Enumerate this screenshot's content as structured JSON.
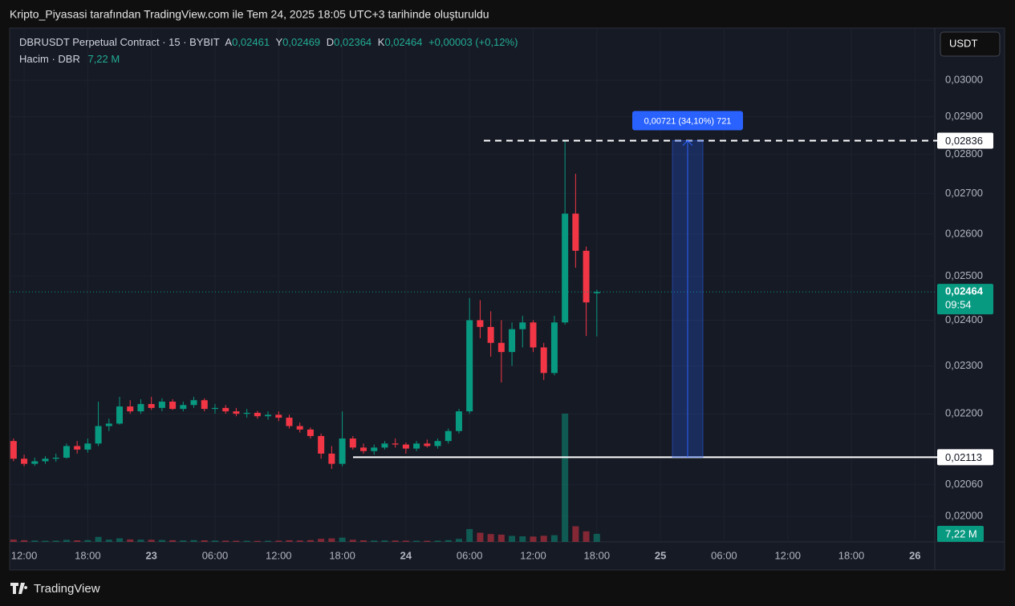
{
  "header": {
    "caption": "Kripto_Piyasasi tarafından TradingView.com ile Tem 24, 2025 18:05 UTC+3 tarihinde oluşturuldu",
    "footer": "TradingView"
  },
  "chart_data": {
    "type": "candlestick",
    "title": "DBRUSDT Perpetual Contract · 15 · BYBIT",
    "legend": {
      "open_label": "A",
      "open": "0,02461",
      "high_label": "Y",
      "high": "0,02469",
      "low_label": "D",
      "low": "0,02364",
      "close_label": "K",
      "close": "0,02464",
      "change": "+0,00003 (+0,12%)"
    },
    "volume_title": "Hacim · DBR",
    "volume_value": "7,22 M",
    "currency": "USDT",
    "up_color": "#089981",
    "down_color": "#f23645",
    "log_scale": true,
    "grid": true,
    "ylim": [
      0.01953,
      0.03149
    ],
    "yticks": [
      {
        "value": 0.02,
        "label": "0,02000"
      },
      {
        "value": 0.0206,
        "label": "0,02060"
      },
      {
        "value": 0.022,
        "label": "0,02200"
      },
      {
        "value": 0.023,
        "label": "0,02300"
      },
      {
        "value": 0.024,
        "label": "0,02400"
      },
      {
        "value": 0.025,
        "label": "0,02500"
      },
      {
        "value": 0.026,
        "label": "0,02600"
      },
      {
        "value": 0.027,
        "label": "0,02700"
      },
      {
        "value": 0.028,
        "label": "0,02800"
      },
      {
        "value": 0.029,
        "label": "0,02900"
      },
      {
        "value": 0.03,
        "label": "0,03000"
      }
    ],
    "xlim": [
      "22 10:38",
      "26 01:52"
    ],
    "xticks": [
      {
        "value": "22 12:00",
        "label": "12:00"
      },
      {
        "value": "22 18:00",
        "label": "18:00"
      },
      {
        "value": "23 00:00",
        "label": "23"
      },
      {
        "value": "23 06:00",
        "label": "06:00"
      },
      {
        "value": "23 12:00",
        "label": "12:00"
      },
      {
        "value": "23 18:00",
        "label": "18:00"
      },
      {
        "value": "24 00:00",
        "label": "24"
      },
      {
        "value": "24 06:00",
        "label": "06:00"
      },
      {
        "value": "24 12:00",
        "label": "12:00"
      },
      {
        "value": "24 18:00",
        "label": "18:00"
      },
      {
        "value": "25 00:00",
        "label": "25"
      },
      {
        "value": "25 06:00",
        "label": "06:00"
      },
      {
        "value": "25 12:00",
        "label": "12:00"
      },
      {
        "value": "25 18:00",
        "label": "18:00"
      },
      {
        "value": "26 00:00",
        "label": "26"
      }
    ],
    "x": [
      "22 11:00",
      "22 12:00",
      "22 13:00",
      "22 14:00",
      "22 15:00",
      "22 16:00",
      "22 17:00",
      "22 18:00",
      "22 19:00",
      "22 20:00",
      "22 21:00",
      "22 22:00",
      "22 23:00",
      "23 00:00",
      "23 01:00",
      "23 02:00",
      "23 03:00",
      "23 04:00",
      "23 05:00",
      "23 06:00",
      "23 07:00",
      "23 08:00",
      "23 09:00",
      "23 10:00",
      "23 11:00",
      "23 12:00",
      "23 13:00",
      "23 14:00",
      "23 15:00",
      "23 16:00",
      "23 17:00",
      "23 18:00",
      "23 19:00",
      "23 20:00",
      "23 21:00",
      "23 22:00",
      "23 23:00",
      "24 00:00",
      "24 01:00",
      "24 02:00",
      "24 03:00",
      "24 04:00",
      "24 05:00",
      "24 06:00",
      "24 07:00",
      "24 08:00",
      "24 09:00",
      "24 10:00",
      "24 11:00",
      "24 12:00",
      "24 13:00",
      "24 14:00",
      "24 15:00",
      "24 16:00",
      "24 17:00",
      "24 18:00"
    ],
    "open": [
      0.02145,
      0.0211,
      0.021,
      0.02105,
      0.0211,
      0.02112,
      0.02135,
      0.02128,
      0.0214,
      0.02175,
      0.0218,
      0.02215,
      0.02205,
      0.0222,
      0.02212,
      0.02225,
      0.0221,
      0.02218,
      0.02228,
      0.0221,
      0.02212,
      0.02205,
      0.022,
      0.02202,
      0.02195,
      0.02198,
      0.02192,
      0.02175,
      0.02168,
      0.02155,
      0.0212,
      0.021,
      0.0215,
      0.02132,
      0.02125,
      0.02132,
      0.0214,
      0.02138,
      0.0213,
      0.0214,
      0.02135,
      0.02145,
      0.02165,
      0.02205,
      0.024,
      0.02385,
      0.0235,
      0.0233,
      0.0238,
      0.02395,
      0.0234,
      0.02285,
      0.02395,
      0.0265,
      0.0256,
      0.02461
    ],
    "high": [
      0.0215,
      0.02118,
      0.02112,
      0.02115,
      0.0212,
      0.0214,
      0.02145,
      0.0215,
      0.02225,
      0.0219,
      0.02235,
      0.02228,
      0.0223,
      0.02235,
      0.02232,
      0.0223,
      0.02225,
      0.02235,
      0.02232,
      0.0222,
      0.02218,
      0.02212,
      0.0221,
      0.02206,
      0.02205,
      0.02205,
      0.02198,
      0.02182,
      0.02172,
      0.0216,
      0.02135,
      0.02205,
      0.02155,
      0.0214,
      0.02138,
      0.02145,
      0.0215,
      0.02142,
      0.02145,
      0.02148,
      0.0215,
      0.0217,
      0.0221,
      0.0245,
      0.02445,
      0.0242,
      0.024,
      0.02395,
      0.0241,
      0.024,
      0.0235,
      0.0241,
      0.02836,
      0.0275,
      0.0257,
      0.02469
    ],
    "low": [
      0.02105,
      0.02095,
      0.02096,
      0.021,
      0.02104,
      0.0211,
      0.0212,
      0.02122,
      0.02135,
      0.02165,
      0.02178,
      0.022,
      0.022,
      0.02208,
      0.02205,
      0.02208,
      0.02205,
      0.02212,
      0.02205,
      0.022,
      0.022,
      0.02195,
      0.02192,
      0.0219,
      0.02188,
      0.02185,
      0.0217,
      0.02162,
      0.0215,
      0.0211,
      0.0209,
      0.02095,
      0.02128,
      0.0212,
      0.02118,
      0.02128,
      0.02132,
      0.0212,
      0.02125,
      0.02132,
      0.0213,
      0.0214,
      0.0216,
      0.022,
      0.0236,
      0.0232,
      0.02265,
      0.023,
      0.0234,
      0.0233,
      0.0227,
      0.0228,
      0.0239,
      0.0252,
      0.02365,
      0.02364
    ],
    "close": [
      0.0211,
      0.021,
      0.02105,
      0.0211,
      0.02112,
      0.02135,
      0.02128,
      0.0214,
      0.02175,
      0.0218,
      0.02215,
      0.02205,
      0.0222,
      0.02212,
      0.02225,
      0.0221,
      0.02218,
      0.02228,
      0.0221,
      0.02212,
      0.02205,
      0.022,
      0.02202,
      0.02195,
      0.02198,
      0.02192,
      0.02175,
      0.02168,
      0.02155,
      0.0212,
      0.021,
      0.0215,
      0.02132,
      0.02125,
      0.02132,
      0.0214,
      0.02138,
      0.0213,
      0.0214,
      0.02135,
      0.02145,
      0.02165,
      0.02205,
      0.024,
      0.02385,
      0.0235,
      0.0233,
      0.0238,
      0.02395,
      0.0234,
      0.02285,
      0.02395,
      0.0265,
      0.0256,
      0.0244,
      0.02464
    ],
    "volume": [
      2.1,
      1.5,
      1.2,
      1,
      1.1,
      1.8,
      1.4,
      1.6,
      4.5,
      2,
      3.2,
      2.2,
      2,
      1.9,
      1.7,
      1.5,
      1.3,
      1.6,
      1.4,
      1.2,
      1.1,
      1,
      1,
      0.9,
      1,
      1.1,
      1.5,
      1.3,
      1.6,
      2.8,
      3.1,
      3.8,
      1.9,
      1.4,
      1.2,
      1.3,
      1.2,
      1.1,
      1,
      1,
      1.1,
      1.6,
      2.7,
      11.5,
      8.2,
      7,
      6.5,
      5.4,
      5,
      4.8,
      5.5,
      6,
      115,
      14,
      9.5,
      7.22
    ],
    "price_lines": [
      {
        "value": 0.02113,
        "label": "0,02113"
      },
      {
        "value": 0.02836,
        "label": "0,02836",
        "dashed": true
      }
    ],
    "last_price": {
      "value": 0.02464,
      "label": "0,02464",
      "countdown": "09:54"
    },
    "measure": {
      "label": "0,00721 (34,10%) 721"
    }
  }
}
